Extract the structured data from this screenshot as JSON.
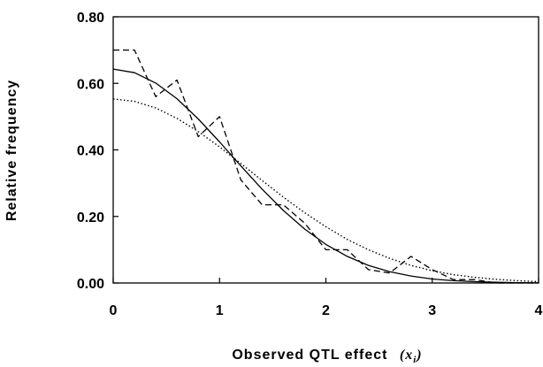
{
  "chart_data": {
    "type": "line",
    "title": "",
    "xlabel": "Observed QTL effect",
    "xlabel_var": "(x",
    "xlabel_sub": "i",
    "xlabel_close": ")",
    "ylabel": "Relative frequency",
    "xlim": [
      0,
      4
    ],
    "ylim": [
      0,
      0.8
    ],
    "x_ticks": [
      0,
      1,
      2,
      3,
      4
    ],
    "x_tick_labels": [
      "0",
      "1",
      "2",
      "3",
      "4"
    ],
    "y_ticks": [
      0,
      0.2,
      0.4,
      0.6,
      0.8
    ],
    "y_tick_labels": [
      "0.00",
      "0.20",
      "0.40",
      "0.60",
      "0.80"
    ],
    "grid": false,
    "series": [
      {
        "style": "dashed",
        "x": [
          0,
          0.2,
          0.4,
          0.6,
          0.8,
          1.0,
          1.2,
          1.4,
          1.6,
          1.8,
          2.0,
          2.2,
          2.4,
          2.6,
          2.8,
          3.0,
          3.2,
          3.4,
          3.6,
          3.8,
          4.0
        ],
        "y": [
          0.7,
          0.7,
          0.56,
          0.61,
          0.44,
          0.5,
          0.31,
          0.235,
          0.235,
          0.18,
          0.1,
          0.1,
          0.04,
          0.03,
          0.08,
          0.04,
          0.01,
          0.01,
          0.0,
          0.0,
          0.0
        ]
      },
      {
        "style": "solid",
        "x": [
          0,
          0.2,
          0.4,
          0.6,
          0.8,
          1.0,
          1.2,
          1.4,
          1.6,
          1.8,
          2.0,
          2.2,
          2.4,
          2.6,
          2.8,
          3.0,
          3.2,
          3.4,
          3.6,
          3.8,
          4.0
        ],
        "y": [
          0.643,
          0.632,
          0.601,
          0.554,
          0.493,
          0.424,
          0.352,
          0.282,
          0.218,
          0.162,
          0.116,
          0.08,
          0.053,
          0.034,
          0.021,
          0.012,
          0.007,
          0.004,
          0.002,
          0.001,
          0.0005
        ]
      },
      {
        "style": "dotted",
        "x": [
          0,
          0.2,
          0.4,
          0.6,
          0.8,
          1.0,
          1.2,
          1.4,
          1.6,
          1.8,
          2.0,
          2.2,
          2.4,
          2.6,
          2.8,
          3.0,
          3.2,
          3.4,
          3.6,
          3.8,
          4.0
        ],
        "y": [
          0.553,
          0.546,
          0.526,
          0.495,
          0.455,
          0.409,
          0.359,
          0.308,
          0.258,
          0.211,
          0.169,
          0.131,
          0.1,
          0.074,
          0.053,
          0.037,
          0.025,
          0.017,
          0.011,
          0.007,
          0.004
        ]
      }
    ]
  }
}
